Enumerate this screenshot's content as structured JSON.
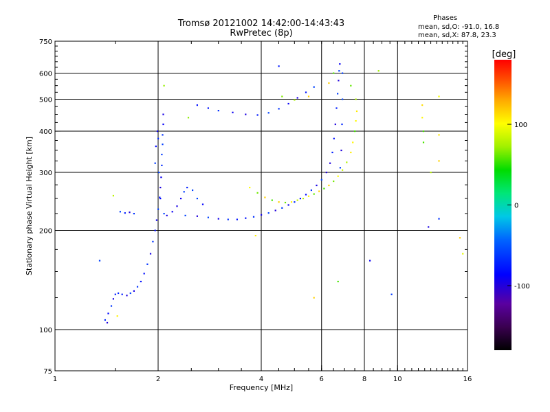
{
  "chart_data": {
    "type": "scatter",
    "title": "Tromsø 20121002 14:42:00-14:43:43",
    "subtitle": "RwPretec (8p)",
    "phases": {
      "title": "Phases",
      "line_o": "mean, sd,O: -91.0, 16.8",
      "line_x": "mean, sd,X:  87.8, 23.3"
    },
    "xlabel": "Frequency [MHz]",
    "ylabel": "Stationary phase Virtual Height [km]",
    "x_scale": "log",
    "y_scale": "log",
    "xlim": [
      1,
      16
    ],
    "ylim": [
      75,
      750
    ],
    "x_ticks": [
      {
        "value": 1,
        "label": "1"
      },
      {
        "value": 2,
        "label": "2"
      },
      {
        "value": 4,
        "label": "4"
      },
      {
        "value": 6,
        "label": "6"
      },
      {
        "value": 8,
        "label": "8"
      },
      {
        "value": 10,
        "label": "10"
      },
      {
        "value": 16,
        "label": "16"
      }
    ],
    "y_ticks": [
      {
        "value": 75,
        "label": "75"
      },
      {
        "value": 100,
        "label": "100"
      },
      {
        "value": 200,
        "label": "200"
      },
      {
        "value": 300,
        "label": "300"
      },
      {
        "value": 400,
        "label": "400"
      },
      {
        "value": 500,
        "label": "500"
      },
      {
        "value": 600,
        "label": "600"
      },
      {
        "value": 750,
        "label": "750"
      }
    ],
    "x_gridlines": [
      2,
      4,
      6,
      8,
      10
    ],
    "y_gridlines": [
      100,
      200,
      300,
      400,
      500,
      600
    ],
    "grid": true,
    "colorbar": {
      "label": "[deg]",
      "ticks": [
        {
          "value": 100,
          "label": "100"
        },
        {
          "value": 0,
          "label": "0"
        },
        {
          "value": -100,
          "label": "-100"
        }
      ],
      "range": [
        -180,
        180
      ],
      "colormap": "black-purple-blue-cyan-green-yellow-orange-red"
    },
    "series": [
      {
        "trace": "O-mode",
        "phase_mean": -91.0,
        "points": [
          [
            1.4,
            107
          ],
          [
            1.42,
            105
          ],
          [
            1.43,
            112
          ],
          [
            1.46,
            118
          ],
          [
            1.48,
            124
          ],
          [
            1.5,
            128
          ],
          [
            1.53,
            129
          ],
          [
            1.57,
            128
          ],
          [
            1.62,
            127
          ],
          [
            1.66,
            129
          ],
          [
            1.7,
            131
          ],
          [
            1.74,
            135
          ],
          [
            1.78,
            140
          ],
          [
            1.82,
            148
          ],
          [
            1.86,
            158
          ],
          [
            1.9,
            170
          ],
          [
            1.93,
            185
          ],
          [
            1.96,
            200
          ],
          [
            1.98,
            215
          ],
          [
            2.0,
            232
          ],
          [
            2.02,
            252
          ],
          [
            2.03,
            270
          ],
          [
            2.04,
            290
          ],
          [
            2.05,
            315
          ],
          [
            2.05,
            340
          ],
          [
            2.06,
            365
          ],
          [
            2.06,
            390
          ],
          [
            2.07,
            420
          ],
          [
            2.07,
            450
          ],
          [
            1.96,
            320
          ],
          [
            1.97,
            360
          ],
          [
            1.99,
            400
          ],
          [
            2.0,
            380
          ],
          [
            2.01,
            300
          ],
          [
            2.03,
            250
          ],
          [
            2.08,
            225
          ],
          [
            2.12,
            222
          ],
          [
            2.2,
            228
          ],
          [
            2.27,
            237
          ],
          [
            2.33,
            250
          ],
          [
            2.38,
            262
          ],
          [
            2.43,
            270
          ],
          [
            2.52,
            265
          ],
          [
            2.6,
            250
          ],
          [
            2.7,
            240
          ],
          [
            1.55,
            228
          ],
          [
            1.6,
            226
          ],
          [
            1.65,
            227
          ],
          [
            1.7,
            225
          ],
          [
            2.4,
            222
          ],
          [
            2.6,
            221
          ],
          [
            2.8,
            219
          ],
          [
            3.0,
            217
          ],
          [
            3.2,
            216
          ],
          [
            3.4,
            216
          ],
          [
            3.6,
            218
          ],
          [
            3.8,
            220
          ],
          [
            4.0,
            223
          ],
          [
            4.2,
            226
          ],
          [
            4.4,
            230
          ],
          [
            4.6,
            234
          ],
          [
            4.8,
            239
          ],
          [
            5.0,
            244
          ],
          [
            5.2,
            250
          ],
          [
            5.4,
            257
          ],
          [
            5.6,
            265
          ],
          [
            5.8,
            274
          ],
          [
            6.0,
            285
          ],
          [
            6.2,
            300
          ],
          [
            6.35,
            320
          ],
          [
            6.45,
            345
          ],
          [
            6.52,
            380
          ],
          [
            6.58,
            420
          ],
          [
            6.63,
            470
          ],
          [
            6.68,
            520
          ],
          [
            6.72,
            570
          ],
          [
            6.75,
            610
          ],
          [
            6.78,
            640
          ],
          [
            6.9,
            600
          ],
          [
            6.9,
            500
          ],
          [
            6.88,
            420
          ],
          [
            6.85,
            350
          ],
          [
            6.8,
            310
          ],
          [
            2.6,
            480
          ],
          [
            2.8,
            470
          ],
          [
            3.0,
            462
          ],
          [
            3.3,
            456
          ],
          [
            3.6,
            450
          ],
          [
            3.9,
            448
          ],
          [
            4.2,
            455
          ],
          [
            4.5,
            468
          ],
          [
            4.8,
            485
          ],
          [
            5.1,
            505
          ],
          [
            5.4,
            525
          ],
          [
            5.7,
            545
          ],
          [
            1.35,
            162
          ],
          [
            4.5,
            630
          ],
          [
            8.3,
            162
          ],
          [
            9.6,
            128
          ],
          [
            12.3,
            205
          ],
          [
            13.2,
            217
          ]
        ]
      },
      {
        "trace": "X-mode",
        "phase_mean": 87.8,
        "points": [
          [
            3.7,
            270
          ],
          [
            3.9,
            260
          ],
          [
            4.1,
            252
          ],
          [
            4.3,
            247
          ],
          [
            4.5,
            244
          ],
          [
            4.7,
            243
          ],
          [
            4.9,
            244
          ],
          [
            5.1,
            247
          ],
          [
            5.3,
            250
          ],
          [
            5.5,
            254
          ],
          [
            5.7,
            258
          ],
          [
            5.9,
            263
          ],
          [
            6.1,
            268
          ],
          [
            6.3,
            274
          ],
          [
            6.5,
            282
          ],
          [
            6.7,
            292
          ],
          [
            6.9,
            305
          ],
          [
            7.1,
            322
          ],
          [
            7.3,
            345
          ],
          [
            7.4,
            370
          ],
          [
            7.5,
            400
          ],
          [
            7.55,
            430
          ],
          [
            7.6,
            460
          ],
          [
            7.55,
            500
          ],
          [
            4.6,
            510
          ],
          [
            5.0,
            498
          ],
          [
            5.5,
            510
          ],
          [
            6.3,
            560
          ],
          [
            6.5,
            600
          ],
          [
            7.3,
            550
          ],
          [
            2.08,
            550
          ],
          [
            2.45,
            440
          ],
          [
            3.85,
            193
          ],
          [
            5.7,
            125
          ],
          [
            6.7,
            140
          ],
          [
            8.8,
            610
          ],
          [
            11.8,
            480
          ],
          [
            11.8,
            440
          ],
          [
            11.9,
            400
          ],
          [
            11.9,
            370
          ],
          [
            13.2,
            510
          ],
          [
            13.2,
            390
          ],
          [
            13.2,
            325
          ],
          [
            12.5,
            300
          ],
          [
            15.2,
            190
          ],
          [
            15.5,
            170
          ],
          [
            1.48,
            255
          ],
          [
            1.52,
            110
          ]
        ]
      }
    ]
  }
}
